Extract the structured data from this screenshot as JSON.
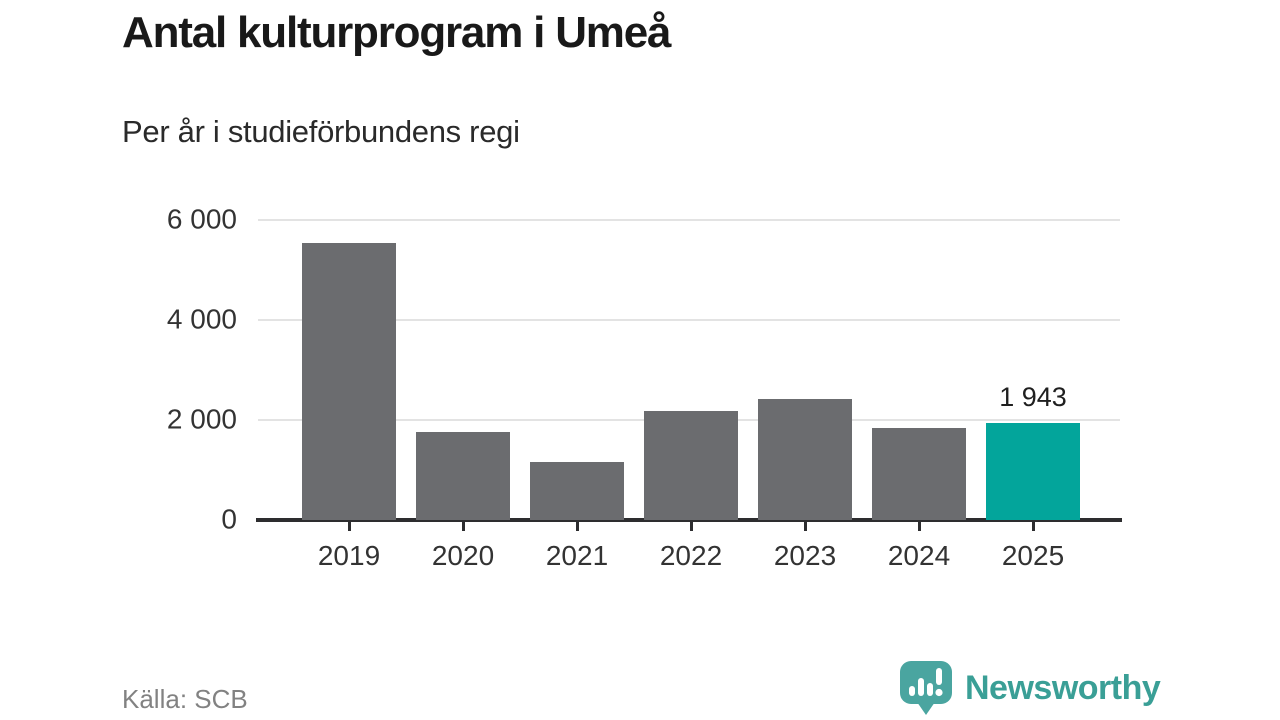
{
  "header": {
    "title": "Antal kulturprogram i Umeå",
    "subtitle": "Per år i studieförbundens regi"
  },
  "footer": {
    "source": "Källa: SCB",
    "brand": "Newsworthy"
  },
  "colors": {
    "bar": "#6b6c6f",
    "highlight": "#03a59b",
    "brand": "#3a9f96",
    "badge": "#4aa5a0",
    "axis": "#2d2d2f",
    "grid": "#e3e3e3",
    "title": "#191919",
    "subtitle": "#2a2a2a",
    "tick_text": "#333333",
    "data_label": "#1f1f1f",
    "source": "#828282"
  },
  "chart_data": {
    "type": "bar",
    "title": "Antal kulturprogram i Umeå",
    "subtitle": "Per år i studieförbundens regi",
    "categories": [
      "2019",
      "2020",
      "2021",
      "2022",
      "2023",
      "2024",
      "2025"
    ],
    "values": [
      5550,
      1770,
      1170,
      2180,
      2420,
      1835,
      1943
    ],
    "highlight_index": 6,
    "data_labels": {
      "6": "1 943"
    },
    "xlabel": "",
    "ylabel": "",
    "ylim": [
      0,
      6400
    ],
    "yticks": [
      0,
      2000,
      4000,
      6000
    ],
    "ytick_labels": [
      "0",
      "2 000",
      "4 000",
      "6 000"
    ],
    "grid": true,
    "legend": "none",
    "source": "Källa: SCB"
  }
}
